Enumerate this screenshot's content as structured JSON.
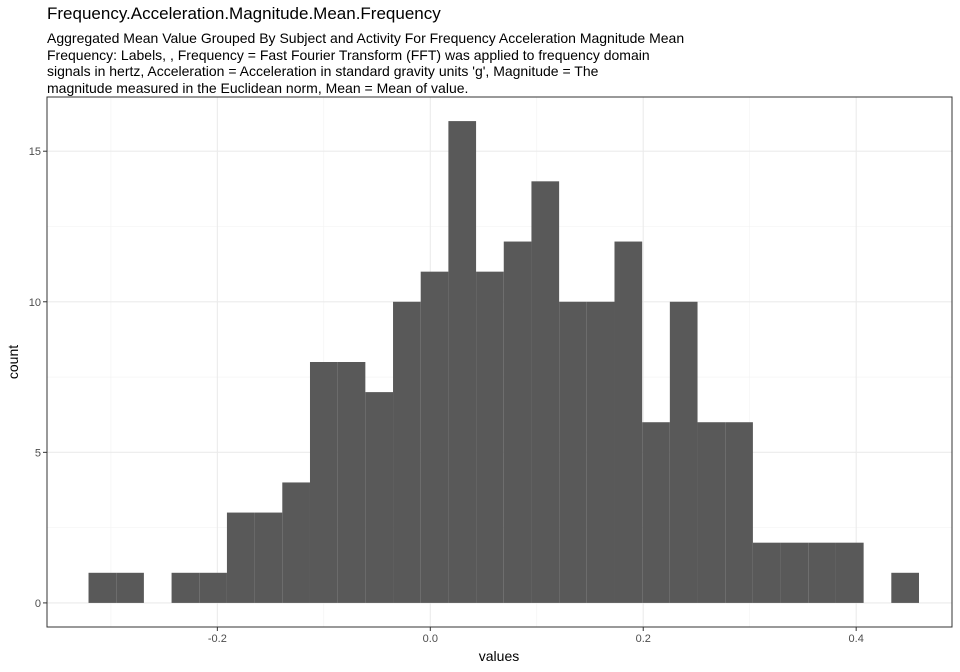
{
  "chart_data": {
    "type": "bar",
    "title": "Frequency.Acceleration.Magnitude.Mean.Frequency",
    "subtitle_lines": [
      "Aggregated Mean Value Grouped By Subject and Activity For Frequency Acceleration Magnitude Mean",
      "Frequency: Labels, , Frequency = Fast Fourier Transform (FFT) was applied to frequency domain",
      "signals in hertz, Acceleration = Acceleration in standard gravity units 'g', Magnitude = The",
      "magnitude measured in the Euclidean norm, Mean = Mean of value."
    ],
    "xlabel": "values",
    "ylabel": "count",
    "xlim": [
      -0.36,
      0.49
    ],
    "ylim": [
      -0.8,
      16.8
    ],
    "x_ticks": [
      -0.2,
      0.0,
      0.2,
      0.4
    ],
    "x_tick_labels": [
      "-0.2",
      "0.0",
      "0.2",
      "0.4"
    ],
    "y_ticks": [
      0,
      5,
      10,
      15
    ],
    "y_tick_labels": [
      "0",
      "5",
      "10",
      "15"
    ],
    "grid": true,
    "bar_color": "#595959",
    "bin_width": 0.026,
    "bins": [
      {
        "x0": -0.321,
        "count": 1
      },
      {
        "x0": -0.295,
        "count": 1
      },
      {
        "x0": -0.269,
        "count": 0
      },
      {
        "x0": -0.243,
        "count": 1
      },
      {
        "x0": -0.217,
        "count": 1
      },
      {
        "x0": -0.191,
        "count": 3
      },
      {
        "x0": -0.165,
        "count": 3
      },
      {
        "x0": -0.139,
        "count": 4
      },
      {
        "x0": -0.113,
        "count": 8
      },
      {
        "x0": -0.087,
        "count": 8
      },
      {
        "x0": -0.061,
        "count": 7
      },
      {
        "x0": -0.035,
        "count": 10
      },
      {
        "x0": -0.009,
        "count": 11
      },
      {
        "x0": 0.017,
        "count": 16
      },
      {
        "x0": 0.043,
        "count": 11
      },
      {
        "x0": 0.069,
        "count": 12
      },
      {
        "x0": 0.095,
        "count": 14
      },
      {
        "x0": 0.121,
        "count": 10
      },
      {
        "x0": 0.147,
        "count": 10
      },
      {
        "x0": 0.173,
        "count": 12
      },
      {
        "x0": 0.199,
        "count": 6
      },
      {
        "x0": 0.225,
        "count": 10
      },
      {
        "x0": 0.251,
        "count": 6
      },
      {
        "x0": 0.277,
        "count": 6
      },
      {
        "x0": 0.303,
        "count": 2
      },
      {
        "x0": 0.329,
        "count": 2
      },
      {
        "x0": 0.355,
        "count": 2
      },
      {
        "x0": 0.381,
        "count": 2
      },
      {
        "x0": 0.407,
        "count": 0
      },
      {
        "x0": 0.433,
        "count": 1
      }
    ]
  }
}
